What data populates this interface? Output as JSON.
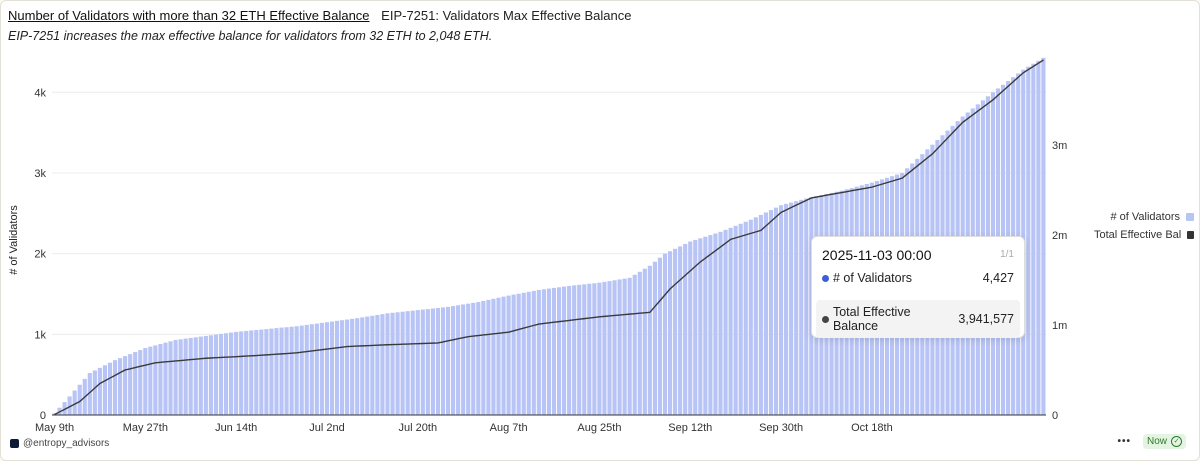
{
  "header": {
    "title": "Number of Validators with more than 32 ETH Effective Balance",
    "subtitle": "EIP-7251: Validators Max Effective Balance",
    "description": "EIP-7251 increases the max effective balance for validators from 32 ETH to 2,048 ETH."
  },
  "chart_data": {
    "type": "bar",
    "x_tick_labels": [
      "May 9th",
      "May 27th",
      "Jun 14th",
      "Jul 2nd",
      "Jul 20th",
      "Aug 7th",
      "Aug 25th",
      "Sep 12th",
      "Sep 30th",
      "Oct 18th"
    ],
    "y_left": {
      "label": "# of Validators",
      "ticks": [
        "0",
        "1k",
        "2k",
        "3k",
        "4k"
      ],
      "range": [
        0,
        4400
      ]
    },
    "y_right": {
      "label": "",
      "ticks": [
        "0",
        "1m",
        "2m",
        "3m"
      ],
      "range": [
        0,
        3941577
      ]
    },
    "series": [
      {
        "name": "# of Validators",
        "kind": "bar",
        "axis": "left",
        "color": "#b8c4f5",
        "anchors": [
          [
            0,
            20
          ],
          [
            3,
            230
          ],
          [
            7,
            520
          ],
          [
            12,
            680
          ],
          [
            18,
            830
          ],
          [
            24,
            930
          ],
          [
            30,
            980
          ],
          [
            36,
            1030
          ],
          [
            48,
            1100
          ],
          [
            54,
            1150
          ],
          [
            60,
            1200
          ],
          [
            66,
            1260
          ],
          [
            72,
            1300
          ],
          [
            78,
            1340
          ],
          [
            84,
            1400
          ],
          [
            90,
            1480
          ],
          [
            96,
            1550
          ],
          [
            102,
            1600
          ],
          [
            108,
            1640
          ],
          [
            114,
            1700
          ],
          [
            118,
            1850
          ],
          [
            121,
            2000
          ],
          [
            126,
            2150
          ],
          [
            132,
            2270
          ],
          [
            138,
            2420
          ],
          [
            144,
            2600
          ],
          [
            150,
            2700
          ],
          [
            156,
            2780
          ],
          [
            162,
            2880
          ],
          [
            168,
            3000
          ],
          [
            174,
            3350
          ],
          [
            180,
            3700
          ],
          [
            186,
            4000
          ],
          [
            192,
            4280
          ],
          [
            196,
            4427
          ]
        ]
      },
      {
        "name": "Total Effective Balance",
        "kind": "line",
        "axis": "right",
        "color": "#3a3a3a",
        "anchors": [
          [
            0,
            5000
          ],
          [
            5,
            150000
          ],
          [
            9,
            350000
          ],
          [
            14,
            500000
          ],
          [
            20,
            580000
          ],
          [
            26,
            610000
          ],
          [
            30,
            630000
          ],
          [
            40,
            660000
          ],
          [
            48,
            690000
          ],
          [
            58,
            760000
          ],
          [
            66,
            780000
          ],
          [
            76,
            800000
          ],
          [
            82,
            870000
          ],
          [
            90,
            920000
          ],
          [
            96,
            1010000
          ],
          [
            102,
            1050000
          ],
          [
            108,
            1090000
          ],
          [
            112,
            1110000
          ],
          [
            118,
            1140000
          ],
          [
            122,
            1400000
          ],
          [
            128,
            1700000
          ],
          [
            134,
            1950000
          ],
          [
            140,
            2050000
          ],
          [
            144,
            2250000
          ],
          [
            150,
            2410000
          ],
          [
            156,
            2470000
          ],
          [
            162,
            2530000
          ],
          [
            168,
            2630000
          ],
          [
            174,
            2900000
          ],
          [
            180,
            3250000
          ],
          [
            186,
            3500000
          ],
          [
            192,
            3800000
          ],
          [
            196,
            3941577
          ]
        ]
      }
    ],
    "n_bars": 197
  },
  "legend": {
    "items": [
      {
        "label": "# of Validators",
        "color": "#b8c4f5"
      },
      {
        "label": "Total Effective Bal",
        "color": "#333333"
      }
    ]
  },
  "tooltip": {
    "date": "2025-11-03 00:00",
    "page": "1/1",
    "rows": [
      {
        "label": "# of Validators",
        "value": "4,427",
        "color": "#3a5fd9"
      },
      {
        "label": "Total Effective Balance",
        "value": "3,941,577",
        "color": "#444444"
      }
    ]
  },
  "footer": {
    "handle": "@entropy_advisors",
    "menu": "•••",
    "status": "Now"
  }
}
